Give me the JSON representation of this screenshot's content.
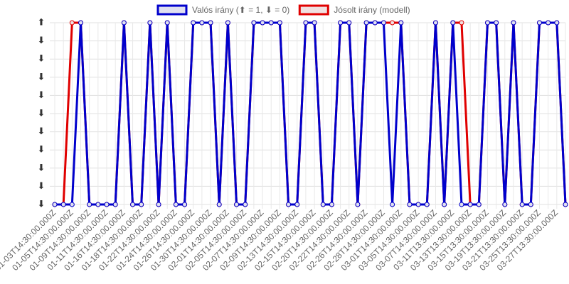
{
  "chart_data": {
    "type": "line",
    "legend": "top",
    "grid": true,
    "categories": [
      "01-03T14:30:00.000Z",
      null,
      "01-05T14:30:00.000Z",
      null,
      "01-09T14:30:00.000Z",
      null,
      "01-11T14:30:00.000Z",
      null,
      "01-16T14:30:00.000Z",
      null,
      "01-18T14:30:00.000Z",
      null,
      "01-22T14:30:00.000Z",
      null,
      "01-24T14:30:00.000Z",
      null,
      "01-26T14:30:00.000Z",
      null,
      "01-30T14:30:00.000Z",
      null,
      "02-01T14:30:00.000Z",
      null,
      "02-05T14:30:00.000Z",
      null,
      "02-07T14:30:00.000Z",
      null,
      "02-09T14:30:00.000Z",
      null,
      "02-13T14:30:00.000Z",
      null,
      "02-15T14:30:00.000Z",
      null,
      "02-20T14:30:00.000Z",
      null,
      "02-22T14:30:00.000Z",
      null,
      "02-26T14:30:00.000Z",
      null,
      "02-28T14:30:00.000Z",
      null,
      "03-01T14:30:00.000Z",
      null,
      "03-05T14:30:00.000Z",
      null,
      "03-07T14:30:00.000Z",
      null,
      "03-11T13:30:00.000Z",
      null,
      "03-13T13:30:00.000Z",
      null,
      "03-15T13:30:00.000Z",
      null,
      "03-19T13:30:00.000Z",
      null,
      "03-21T13:30:00.000Z",
      null,
      "03-25T13:30:00.000Z",
      null,
      "03-27T13:30:00.000Z",
      null
    ],
    "series": [
      {
        "name": "Jósolt irány (modell)",
        "color": "#e00000",
        "fill": "#f0e0e0",
        "values": [
          0,
          0,
          1,
          1,
          0,
          0,
          0,
          0,
          1,
          0,
          0,
          1,
          0,
          1,
          0,
          0,
          1,
          1,
          1,
          0,
          1,
          0,
          0,
          1,
          1,
          1,
          1,
          0,
          0,
          1,
          1,
          0,
          0,
          1,
          1,
          0,
          1,
          1,
          1,
          1,
          1,
          0,
          0,
          0,
          1,
          0,
          1,
          1,
          0,
          0,
          1,
          1,
          0,
          1,
          0,
          0,
          1,
          1,
          1,
          0
        ]
      },
      {
        "name": "Valós irány (⬆ = 1, ⬇ = 0)",
        "color": "#0000cc",
        "fill": "#e0e0f0",
        "values": [
          0,
          0,
          0,
          1,
          0,
          0,
          0,
          0,
          1,
          0,
          0,
          1,
          0,
          1,
          0,
          0,
          1,
          1,
          1,
          0,
          1,
          0,
          0,
          1,
          1,
          1,
          1,
          0,
          0,
          1,
          1,
          0,
          0,
          1,
          1,
          0,
          1,
          1,
          1,
          0,
          1,
          0,
          0,
          0,
          1,
          0,
          1,
          0,
          0,
          0,
          1,
          1,
          0,
          1,
          0,
          0,
          1,
          1,
          1,
          0
        ]
      }
    ],
    "ylim": [
      0,
      1
    ],
    "yticks": [
      {
        "value": 0,
        "label": "⬇"
      },
      {
        "value": 0.1,
        "label": "⬇"
      },
      {
        "value": 0.2,
        "label": "⬇"
      },
      {
        "value": 0.3,
        "label": "⬇"
      },
      {
        "value": 0.4,
        "label": "⬇"
      },
      {
        "value": 0.5,
        "label": "⬇"
      },
      {
        "value": 0.6,
        "label": "⬇"
      },
      {
        "value": 0.7,
        "label": "⬇"
      },
      {
        "value": 0.8,
        "label": "⬇"
      },
      {
        "value": 0.9,
        "label": "⬇"
      },
      {
        "value": 1,
        "label": "⬆"
      }
    ]
  }
}
